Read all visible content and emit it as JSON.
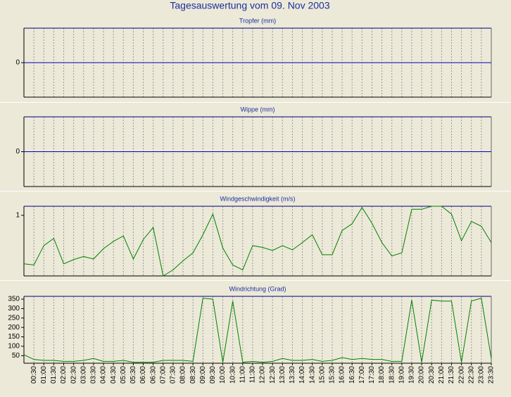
{
  "title": "Tagesauswertung vom 09. Nov 2003",
  "chart_data": [
    {
      "type": "line",
      "title": "Tropfer (mm)",
      "ylim": [
        -1,
        1
      ],
      "yticks": [
        0
      ],
      "series": [
        {
          "color": "#0000c0",
          "values": [
            0,
            0,
            0,
            0,
            0,
            0,
            0,
            0,
            0,
            0,
            0,
            0,
            0,
            0,
            0,
            0,
            0,
            0,
            0,
            0,
            0,
            0,
            0,
            0,
            0,
            0,
            0,
            0,
            0,
            0,
            0,
            0,
            0,
            0,
            0,
            0,
            0,
            0,
            0,
            0,
            0,
            0,
            0,
            0,
            0,
            0,
            0,
            0
          ]
        }
      ]
    },
    {
      "type": "line",
      "title": "Wippe (mm)",
      "ylim": [
        -1,
        1
      ],
      "yticks": [
        0
      ],
      "series": [
        {
          "color": "#0000c0",
          "values": [
            0,
            0,
            0,
            0,
            0,
            0,
            0,
            0,
            0,
            0,
            0,
            0,
            0,
            0,
            0,
            0,
            0,
            0,
            0,
            0,
            0,
            0,
            0,
            0,
            0,
            0,
            0,
            0,
            0,
            0,
            0,
            0,
            0,
            0,
            0,
            0,
            0,
            0,
            0,
            0,
            0,
            0,
            0,
            0,
            0,
            0,
            0,
            0
          ]
        }
      ]
    },
    {
      "type": "line",
      "title": "Windgeschwindigkeit (m/s)",
      "ylim": [
        0,
        1.15
      ],
      "yticks": [
        1
      ],
      "series": [
        {
          "color": "#008000",
          "values": [
            0.2,
            0.18,
            0.5,
            0.62,
            0.2,
            0.27,
            0.32,
            0.28,
            0.45,
            0.57,
            0.66,
            0.28,
            0.6,
            0.8,
            0.0,
            0.1,
            0.25,
            0.38,
            0.68,
            1.02,
            0.46,
            0.18,
            0.1,
            0.5,
            0.47,
            0.42,
            0.5,
            0.43,
            0.55,
            0.68,
            0.35,
            0.35,
            0.75,
            0.86,
            1.13,
            0.87,
            0.55,
            0.33,
            0.38,
            1.1,
            1.1,
            1.15,
            1.15,
            1.02,
            0.58,
            0.9,
            0.82,
            0.55
          ]
        }
      ]
    },
    {
      "type": "line",
      "title": "Windrichtung (Grad)",
      "ylim": [
        10,
        365
      ],
      "yticks": [
        50,
        100,
        150,
        200,
        250,
        300,
        350
      ],
      "categories": [
        null,
        "00:30",
        "01:00",
        "01:30",
        "02:00",
        "02:30",
        "03:00",
        "03:30",
        "04:00",
        "04:30",
        "05:00",
        "05:30",
        "06:00",
        "06:30",
        "07:00",
        "07:30",
        "08:00",
        "08:30",
        "09:00",
        "09:30",
        "10:00",
        "10:30",
        "11:00",
        "11:30",
        "12:00",
        "12:30",
        "13:00",
        "13:30",
        "14:00",
        "14:30",
        "15:00",
        "15:30",
        "16:00",
        "16:30",
        "17:00",
        "17:30",
        "18:00",
        "18:30",
        "19:00",
        "19:30",
        "20:00",
        "20:30",
        "21:00",
        "21:30",
        "22:00",
        "22:30",
        "23:00",
        "23:30"
      ],
      "series": [
        {
          "color": "#008000",
          "values": [
            55,
            30,
            25,
            25,
            20,
            20,
            25,
            35,
            20,
            20,
            25,
            15,
            15,
            15,
            25,
            25,
            25,
            20,
            355,
            350,
            15,
            340,
            15,
            20,
            15,
            20,
            35,
            25,
            25,
            30,
            20,
            25,
            40,
            30,
            35,
            30,
            30,
            20,
            20,
            345,
            15,
            345,
            340,
            340,
            15,
            340,
            355,
            35
          ]
        }
      ]
    }
  ]
}
